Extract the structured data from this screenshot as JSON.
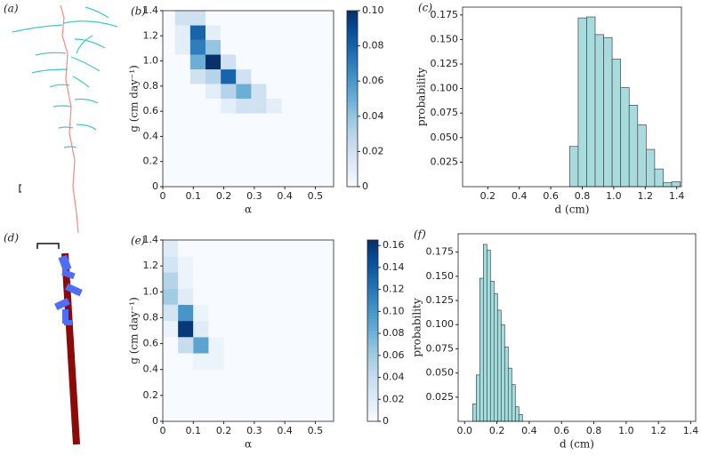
{
  "illustrations": [
    {
      "label": "(a)"
    },
    {
      "label": "(d)"
    }
  ],
  "chart_data": [
    {
      "type": "heatmap",
      "panel": "(b)",
      "xlabel": "α",
      "ylabel": "g (cm day⁻¹)",
      "colormap": "Blues",
      "xlim": [
        0,
        0.56
      ],
      "ylim": [
        0,
        1.4
      ],
      "xticks": [
        0,
        0.1,
        0.2,
        0.3,
        0.4,
        0.5
      ],
      "yticks": [
        0,
        0.2,
        0.4,
        0.6,
        0.8,
        {
          "value": 1.0,
          "label": "1.0"
        },
        1.2,
        1.4
      ],
      "xbins": [
        0.04,
        0.09,
        0.14,
        0.19,
        0.24,
        0.29,
        0.34,
        0.39
      ],
      "ybins": [
        0.583,
        0.7,
        0.817,
        0.933,
        1.05,
        1.167,
        1.283,
        1.4
      ],
      "z": [
        [
          0,
          0,
          0,
          0.01,
          0.02,
          0.02,
          0.01
        ],
        [
          0,
          0,
          0.01,
          0.03,
          0.05,
          0.02,
          0
        ],
        [
          0,
          0.02,
          0.03,
          0.08,
          0.02,
          0,
          0
        ],
        [
          0,
          0.05,
          0.1,
          0.02,
          0,
          0,
          0
        ],
        [
          0.01,
          0.07,
          0.04,
          0,
          0,
          0,
          0
        ],
        [
          0.01,
          0.08,
          0.01,
          0,
          0,
          0,
          0
        ],
        [
          0.02,
          0.02,
          0,
          0,
          0,
          0,
          0
        ]
      ],
      "clim": [
        0,
        0.1
      ],
      "cticks": [
        0,
        0.02,
        0.04,
        0.06,
        0.08,
        {
          "value": 0.1,
          "label": "0.10"
        }
      ]
    },
    {
      "type": "histogram",
      "panel": "(c)",
      "xlabel": "d (cm)",
      "ylabel": "probability",
      "color": "#a8dcdc",
      "xlim": [
        0.04,
        1.43
      ],
      "ylim": [
        0,
        0.183
      ],
      "xticks": [
        0.2,
        0.4,
        0.6,
        0.8,
        {
          "value": 1.0,
          "label": "1.0"
        },
        1.2,
        1.4
      ],
      "yticks": [
        0.025,
        {
          "value": 0.05,
          "label": "0.050"
        },
        0.075,
        {
          "value": 0.1,
          "label": "0.100"
        },
        0.125,
        {
          "value": 0.15,
          "label": "0.150"
        },
        0.175
      ],
      "bins": [
        0.72,
        0.774,
        0.828,
        0.882,
        0.936,
        0.99,
        1.044,
        1.098,
        1.152,
        1.206,
        1.26,
        1.314,
        1.368,
        1.422
      ],
      "values": [
        0.041,
        0.172,
        0.173,
        0.155,
        0.152,
        0.13,
        0.101,
        0.083,
        0.063,
        0.038,
        0.018,
        0.004,
        0.005
      ]
    },
    {
      "type": "heatmap",
      "panel": "(e)",
      "xlabel": "α",
      "ylabel": "g (cm day⁻¹)",
      "colormap": "Blues",
      "xlim": [
        0,
        0.56
      ],
      "ylim": [
        0,
        1.4
      ],
      "xticks": [
        0,
        0.1,
        0.2,
        0.3,
        0.4,
        0.5
      ],
      "yticks": [
        0,
        0.2,
        0.4,
        0.6,
        0.8,
        {
          "value": 1.0,
          "label": "1.0"
        },
        1.2,
        1.4
      ],
      "xbins": [
        0,
        0.05,
        0.1,
        0.15,
        0.2
      ],
      "ybins": [
        0.4,
        0.525,
        0.65,
        0.775,
        0.9,
        1.025,
        1.15,
        1.275,
        1.4
      ],
      "z": [
        [
          0,
          0,
          0.01,
          0.01
        ],
        [
          0,
          0.04,
          0.09,
          0.01
        ],
        [
          0.01,
          0.16,
          0.02,
          0
        ],
        [
          0.03,
          0.1,
          0.01,
          0
        ],
        [
          0.06,
          0.02,
          0,
          0
        ],
        [
          0.05,
          0.01,
          0,
          0
        ],
        [
          0.03,
          0.01,
          0,
          0
        ],
        [
          0.02,
          0,
          0,
          0
        ]
      ],
      "clim": [
        0,
        0.165
      ],
      "cticks": [
        0,
        0.02,
        0.04,
        0.06,
        0.08,
        {
          "value": 0.1,
          "label": "0.10"
        },
        0.12,
        0.14,
        0.16
      ]
    },
    {
      "type": "histogram",
      "panel": "(f)",
      "xlabel": "d (cm)",
      "ylabel": "probability",
      "color": "#a8dcdc",
      "xlim": [
        -0.04,
        1.43
      ],
      "ylim": [
        0,
        0.194
      ],
      "xticks": [
        {
          "value": 0,
          "label": "0.0"
        },
        0.2,
        0.4,
        0.6,
        0.8,
        {
          "value": 1.0,
          "label": "1.0"
        },
        1.2,
        1.4
      ],
      "yticks": [
        0.025,
        {
          "value": 0.05,
          "label": "0.050"
        },
        0.075,
        {
          "value": 0.1,
          "label": "0.100"
        },
        0.125,
        {
          "value": 0.15,
          "label": "0.150"
        },
        0.175
      ],
      "bins": [
        0.05,
        0.072,
        0.094,
        0.116,
        0.138,
        0.16,
        0.182,
        0.204,
        0.226,
        0.248,
        0.27,
        0.292,
        0.314,
        0.336,
        0.358
      ],
      "values": [
        0.018,
        0.048,
        0.148,
        0.183,
        0.177,
        0.145,
        0.132,
        0.115,
        0.1,
        0.077,
        0.055,
        0.038,
        0.015,
        0.007
      ]
    }
  ]
}
